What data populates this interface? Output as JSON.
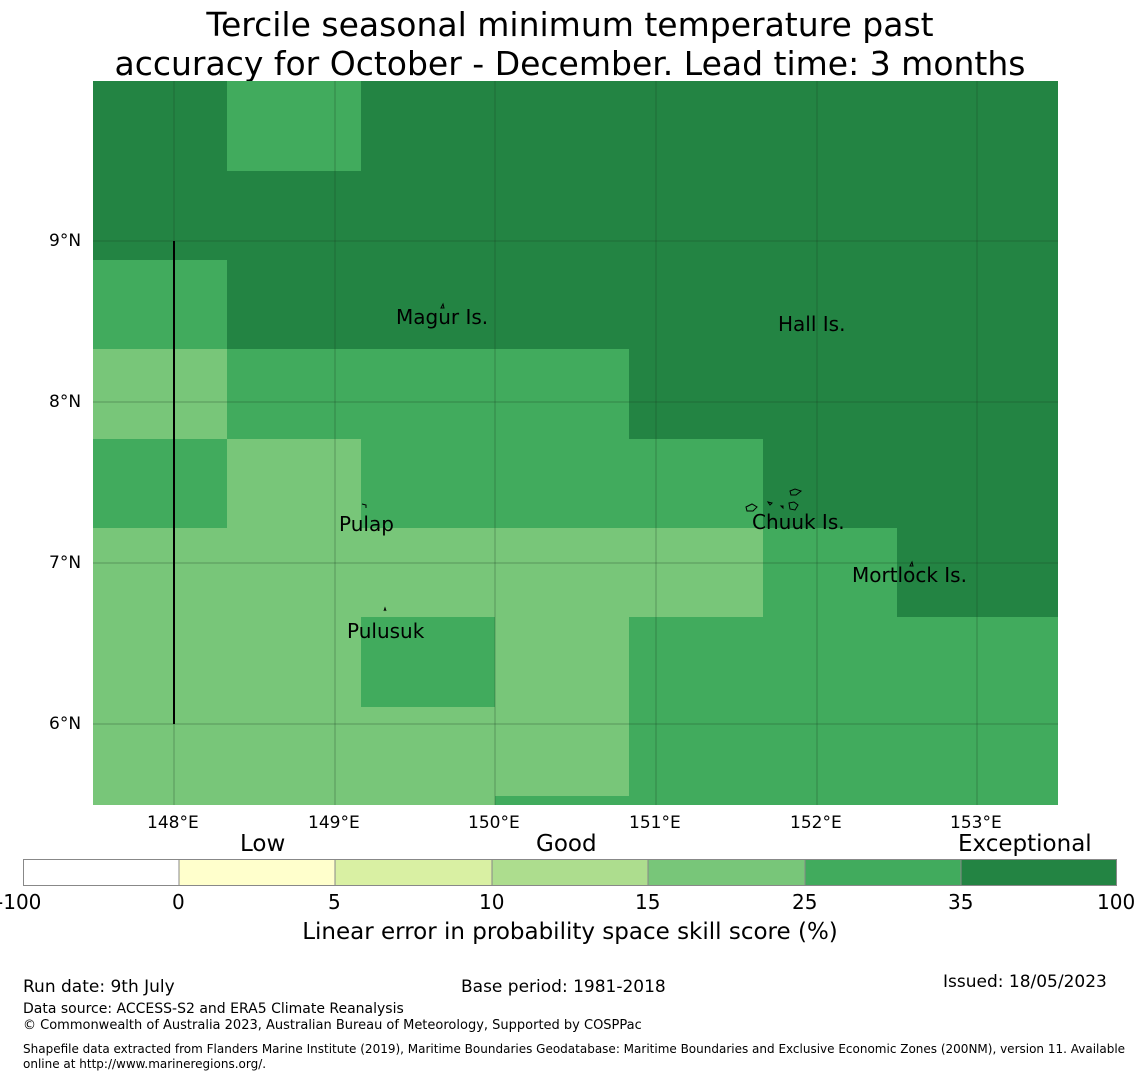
{
  "title": {
    "line1": "Tercile seasonal minimum temperature past",
    "line2": "accuracy for October - December. Lead time: 3 months"
  },
  "map": {
    "lon_ticks": [
      "148°E",
      "149°E",
      "150°E",
      "151°E",
      "152°E",
      "153°E"
    ],
    "lat_ticks": [
      "9°N",
      "8°N",
      "7°N",
      "6°N"
    ],
    "places": [
      {
        "name": "Magur Is.",
        "lon": 149.6,
        "lat": 8.55
      },
      {
        "name": "Hall Is.",
        "lon": 151.85,
        "lat": 8.5
      },
      {
        "name": "Pulap",
        "lon": 149.2,
        "lat": 7.25
      },
      {
        "name": "Chuuk Is.",
        "lon": 151.85,
        "lat": 7.27
      },
      {
        "name": "Mortlock Is.",
        "lon": 152.6,
        "lat": 6.93
      },
      {
        "name": "Pulusuk",
        "lon": 149.33,
        "lat": 6.6
      }
    ],
    "skill_category_colors": {
      "15-25": "#78c679",
      "25-35": "#41ab5d",
      "35-100": "#238443"
    }
  },
  "colorbar": {
    "categories": [
      "Low",
      "Good",
      "Exceptional"
    ],
    "ticks": [
      "-100",
      "0",
      "5",
      "10",
      "15",
      "25",
      "35",
      "100"
    ],
    "colors": [
      "#ffffff",
      "#ffffcc",
      "#d9f0a3",
      "#addd8e",
      "#78c679",
      "#41ab5d",
      "#238443"
    ],
    "label": "Linear error in probability space skill score (%)"
  },
  "footer": {
    "run_date": "Run date: 9th July",
    "base_period": "Base period: 1981-2018",
    "issued": "Issued: 18/05/2023",
    "data_source": "Data source: ACCESS-S2 and ERA5 Climate Reanalysis",
    "copyright": "© Commonwealth of Australia 2023, Australian Bureau of Meteorology, Supported by COSPPac",
    "shapefile_line1": "Shapefile data extracted from Flanders Marine Institute (2019), Maritime Boundaries Geodatabase: Maritime Boundaries and Exclusive Economic Zones (200NM), version 11. Available",
    "shapefile_line2": "online at http://www.marineregions.org/."
  }
}
